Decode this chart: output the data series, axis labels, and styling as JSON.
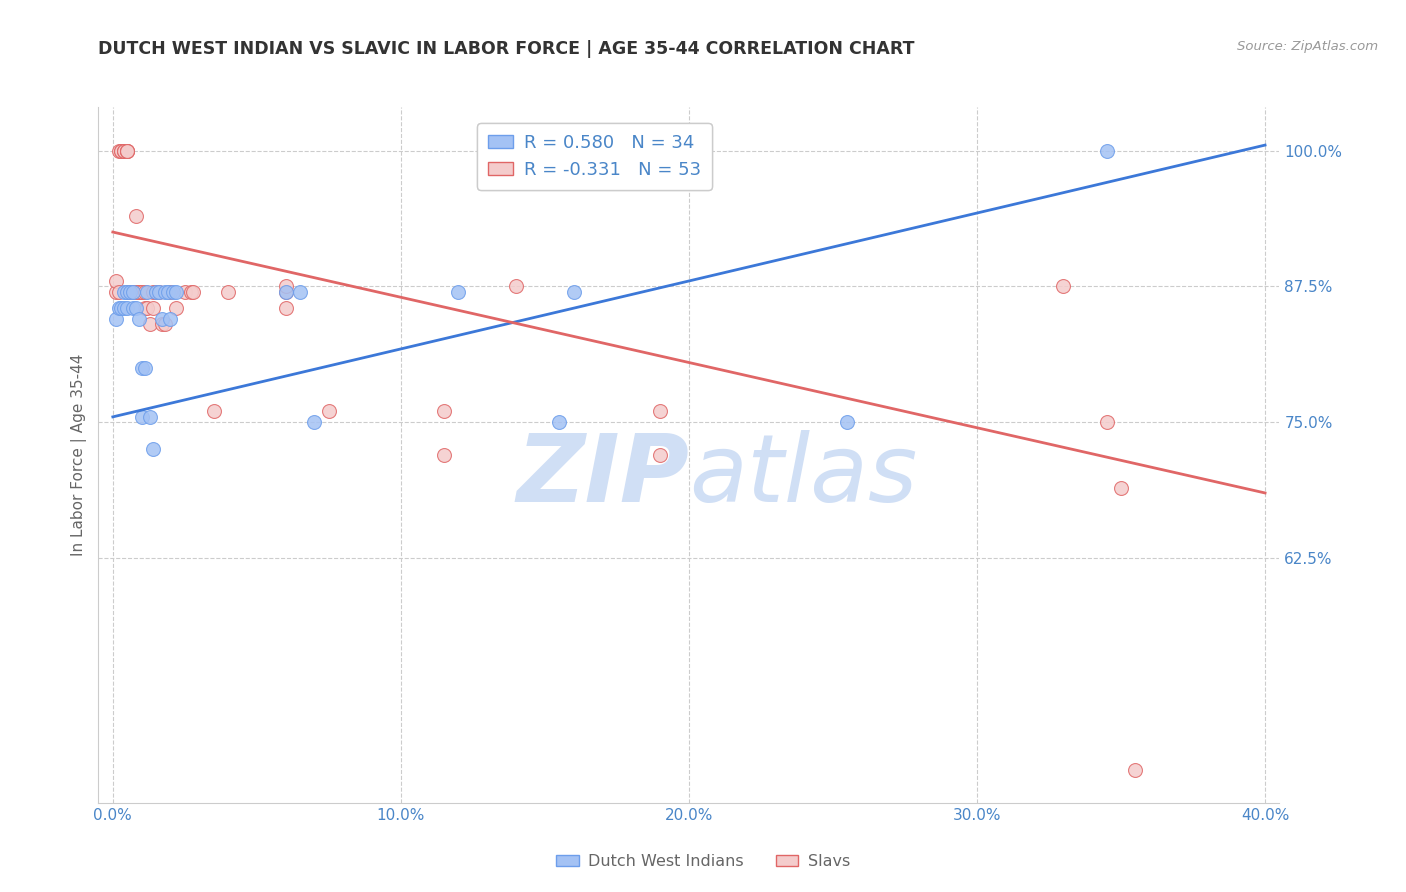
{
  "title": "DUTCH WEST INDIAN VS SLAVIC IN LABOR FORCE | AGE 35-44 CORRELATION CHART",
  "source": "Source: ZipAtlas.com",
  "ylabel": "In Labor Force | Age 35-44",
  "xlim": [
    -0.005,
    0.405
  ],
  "ylim": [
    0.4,
    1.04
  ],
  "xticks": [
    0.0,
    0.1,
    0.2,
    0.3,
    0.4
  ],
  "xticklabels": [
    "0.0%",
    "10.0%",
    "20.0%",
    "30.0%",
    "40.0%"
  ],
  "yticks": [
    0.625,
    0.75,
    0.875,
    1.0
  ],
  "yticklabels": [
    "62.5%",
    "75.0%",
    "87.5%",
    "100.0%"
  ],
  "legend_blue_text": "R = 0.580   N = 34",
  "legend_pink_text": "R = -0.331   N = 53",
  "blue_color": "#a4c2f4",
  "pink_color": "#f4cccc",
  "blue_dot_edge": "#6d9eeb",
  "pink_dot_edge": "#e06666",
  "blue_line_color": "#3c78d8",
  "pink_line_color": "#e06666",
  "axis_label_color": "#4a86c8",
  "grid_color": "#cccccc",
  "watermark_color": "#d0dff5",
  "blue_line_x0": 0.0,
  "blue_line_x1": 0.4,
  "blue_line_y0": 0.755,
  "blue_line_y1": 1.005,
  "pink_line_x0": 0.0,
  "pink_line_x1": 0.4,
  "pink_line_y0": 0.925,
  "pink_line_y1": 0.685,
  "blue_scatter_x": [
    0.001,
    0.002,
    0.003,
    0.004,
    0.004,
    0.005,
    0.005,
    0.006,
    0.007,
    0.007,
    0.008,
    0.009,
    0.01,
    0.01,
    0.011,
    0.012,
    0.013,
    0.014,
    0.015,
    0.016,
    0.017,
    0.018,
    0.019,
    0.02,
    0.021,
    0.022,
    0.06,
    0.065,
    0.07,
    0.12,
    0.155,
    0.16,
    0.255,
    0.345
  ],
  "blue_scatter_y": [
    0.845,
    0.855,
    0.855,
    0.855,
    0.87,
    0.87,
    0.855,
    0.87,
    0.87,
    0.855,
    0.855,
    0.845,
    0.8,
    0.755,
    0.8,
    0.87,
    0.755,
    0.725,
    0.87,
    0.87,
    0.845,
    0.87,
    0.87,
    0.845,
    0.87,
    0.87,
    0.87,
    0.87,
    0.75,
    0.87,
    0.75,
    0.87,
    0.75,
    1.0
  ],
  "pink_scatter_x": [
    0.001,
    0.001,
    0.002,
    0.002,
    0.003,
    0.003,
    0.004,
    0.004,
    0.004,
    0.005,
    0.005,
    0.005,
    0.005,
    0.005,
    0.006,
    0.006,
    0.007,
    0.007,
    0.008,
    0.008,
    0.009,
    0.009,
    0.01,
    0.011,
    0.011,
    0.012,
    0.013,
    0.014,
    0.014,
    0.015,
    0.016,
    0.017,
    0.018,
    0.02,
    0.022,
    0.025,
    0.027,
    0.028,
    0.035,
    0.04,
    0.06,
    0.06,
    0.06,
    0.075,
    0.115,
    0.115,
    0.14,
    0.19,
    0.19,
    0.33,
    0.345,
    0.35,
    0.355
  ],
  "pink_scatter_y": [
    0.87,
    0.88,
    0.87,
    1.0,
    1.0,
    1.0,
    1.0,
    1.0,
    1.0,
    1.0,
    1.0,
    1.0,
    1.0,
    0.87,
    0.87,
    0.87,
    0.87,
    0.87,
    0.87,
    0.94,
    0.87,
    0.87,
    0.87,
    0.855,
    0.87,
    0.855,
    0.84,
    0.87,
    0.855,
    0.87,
    0.87,
    0.84,
    0.84,
    0.87,
    0.855,
    0.87,
    0.87,
    0.87,
    0.76,
    0.87,
    0.87,
    0.855,
    0.875,
    0.76,
    0.72,
    0.76,
    0.875,
    0.76,
    0.72,
    0.875,
    0.75,
    0.69,
    0.43
  ]
}
